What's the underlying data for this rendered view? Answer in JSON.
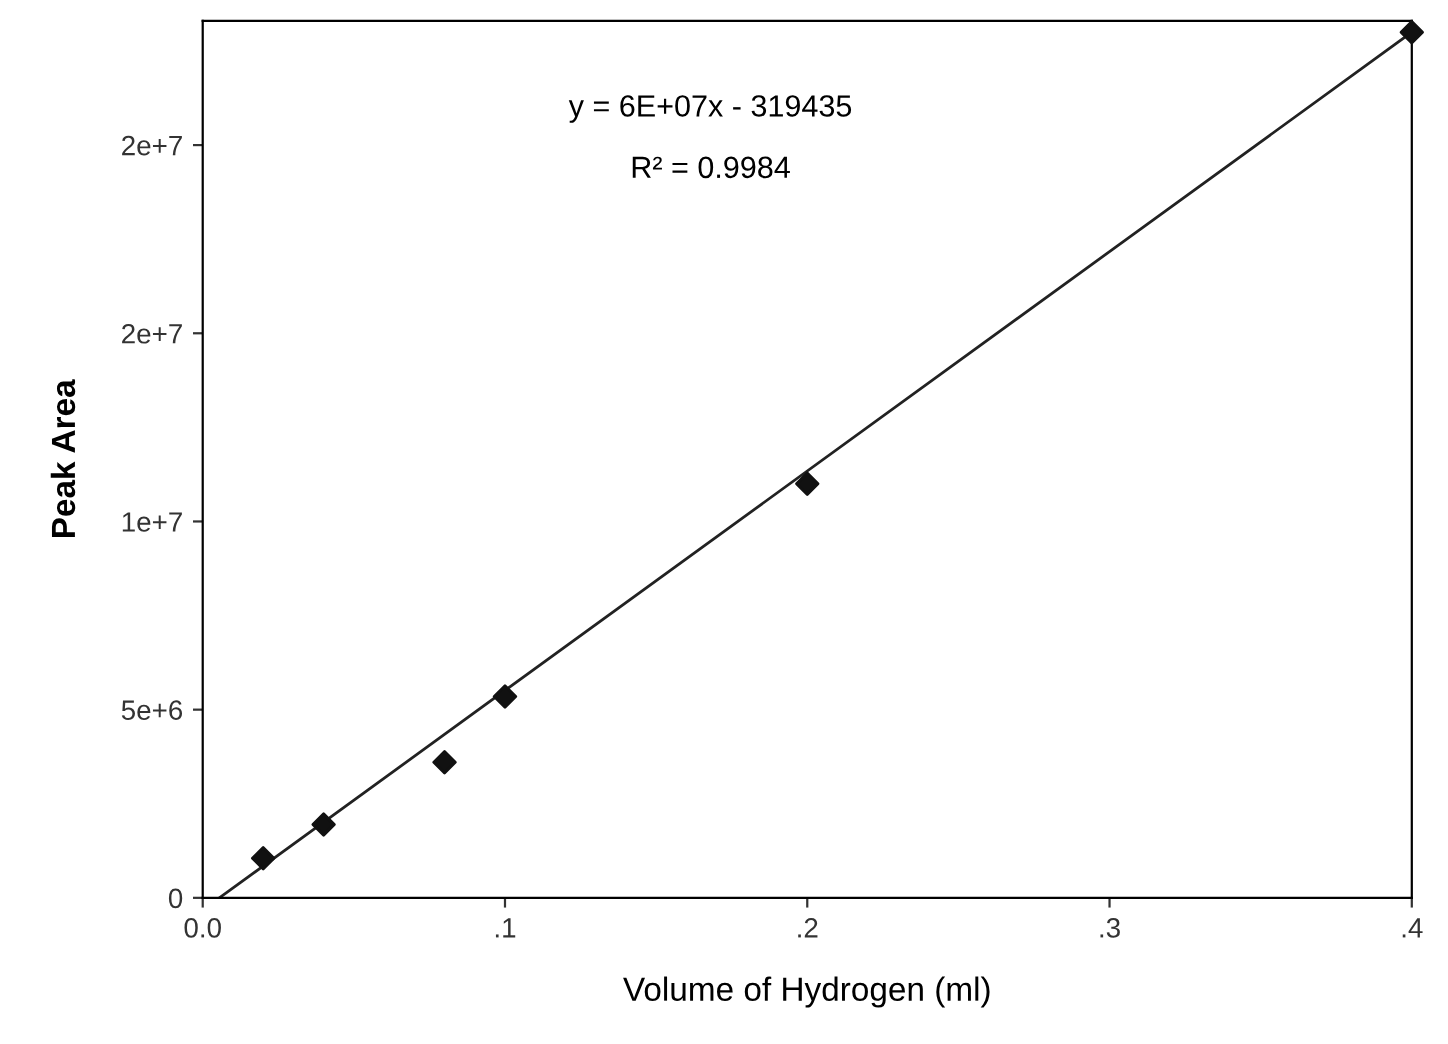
{
  "chart_data": {
    "type": "scatter",
    "xlabel": "Volume of Hydrogen (ml)",
    "ylabel": "Peak Area",
    "series": [
      {
        "color": "#111111",
        "marker": "diamond",
        "x": [
          0.02,
          0.04,
          0.08,
          0.1,
          0.2,
          0.4
        ],
        "values": [
          1050000,
          1950000,
          3600000,
          5350000,
          11000000,
          23000000
        ]
      },
      {
        "type": "line",
        "color": "#222222",
        "marker": "none",
        "line_style": "solid",
        "x": [
          0.0055,
          0.4
        ],
        "values": [
          0,
          23000000
        ]
      }
    ],
    "xlim": [
      0,
      0.4
    ],
    "ylim": [
      0,
      23300000
    ],
    "xticks": [
      {
        "value": 0,
        "label": "0.0"
      },
      {
        "value": 0.1,
        "label": ".1"
      },
      {
        "value": 0.2,
        "label": ".2"
      },
      {
        "value": 0.3,
        "label": ".3"
      },
      {
        "value": 0.4,
        "label": ".4"
      }
    ],
    "yticks": [
      0,
      {
        "value": 5000000,
        "label": "5e+6"
      },
      {
        "value": 10000000,
        "label": "1e+7"
      },
      {
        "value": 15000000,
        "label": "2e+7"
      },
      {
        "value": 20000000,
        "label": "2e+7"
      }
    ],
    "annotations": [
      "y = 6E+07x - 319435",
      "R² = 0.9984"
    ],
    "grid": false,
    "legend": false
  }
}
